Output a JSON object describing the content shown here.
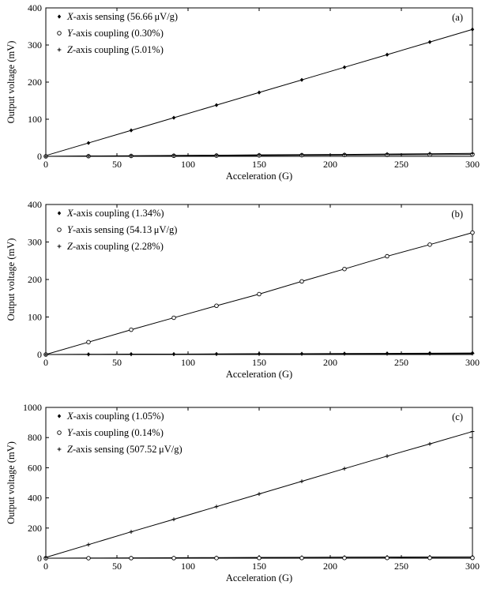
{
  "chart_data": [
    {
      "type": "line",
      "panel_label": "(a)",
      "xlabel": "Acceleration (G)",
      "ylabel": "Output voltage (mV)",
      "xlim": [
        0,
        300
      ],
      "ylim": [
        0,
        400
      ],
      "xticks": [
        0,
        50,
        100,
        150,
        200,
        250,
        300
      ],
      "yticks": [
        0,
        100,
        200,
        300,
        400
      ],
      "legend_position": "top-left",
      "x": [
        0,
        30,
        60,
        90,
        120,
        150,
        180,
        210,
        240,
        270,
        300
      ],
      "series": [
        {
          "axis": "X",
          "name_rest": "-axis sensing (56.66 μV/g)",
          "marker": "diamond",
          "values": [
            2,
            36,
            70,
            104,
            138,
            172,
            206,
            240,
            274,
            308,
            342
          ]
        },
        {
          "axis": "Y",
          "name_rest": "-axis coupling (0.30%)",
          "marker": "circle",
          "values": [
            0,
            0.5,
            1,
            1.5,
            2,
            2.5,
            3,
            3.5,
            4,
            4.5,
            5
          ]
        },
        {
          "axis": "Z",
          "name_rest": "-axis coupling (5.01%)",
          "marker": "plus",
          "values": [
            0,
            1,
            1.5,
            2.5,
            3,
            4,
            4.5,
            5,
            6,
            7,
            8
          ]
        }
      ]
    },
    {
      "type": "line",
      "panel_label": "(b)",
      "xlabel": "Acceleration (G)",
      "ylabel": "Output voltage (mV)",
      "xlim": [
        0,
        300
      ],
      "ylim": [
        0,
        400
      ],
      "xticks": [
        0,
        50,
        100,
        150,
        200,
        250,
        300
      ],
      "yticks": [
        0,
        100,
        200,
        300,
        400
      ],
      "legend_position": "top-left",
      "x": [
        0,
        30,
        60,
        90,
        120,
        150,
        180,
        210,
        240,
        270,
        300
      ],
      "series": [
        {
          "axis": "X",
          "name_rest": "-axis coupling (1.34%)",
          "marker": "diamond",
          "values": [
            0,
            0.5,
            1,
            1,
            1.5,
            2,
            2,
            2.5,
            3,
            3.5,
            4
          ]
        },
        {
          "axis": "Y",
          "name_rest": "-axis sensing (54.13 μV/g)",
          "marker": "circle",
          "values": [
            0,
            33,
            66,
            98,
            130,
            161,
            195,
            228,
            262,
            293,
            325
          ]
        },
        {
          "axis": "Z",
          "name_rest": "-axis coupling (2.28%)",
          "marker": "plus",
          "values": [
            0,
            0.3,
            0.6,
            0.9,
            1.1,
            1.4,
            1.6,
            1.8,
            2,
            2.2,
            2.4
          ]
        }
      ]
    },
    {
      "type": "line",
      "panel_label": "(c)",
      "xlabel": "Acceleration (G)",
      "ylabel": "Output voltage (mV)",
      "xlim": [
        0,
        300
      ],
      "ylim": [
        0,
        1000
      ],
      "xticks": [
        0,
        50,
        100,
        150,
        200,
        250,
        300
      ],
      "yticks": [
        0,
        200,
        400,
        600,
        800,
        1000
      ],
      "legend_position": "top-left",
      "x": [
        0,
        30,
        60,
        90,
        120,
        150,
        180,
        210,
        240,
        270,
        300
      ],
      "series": [
        {
          "axis": "X",
          "name_rest": "-axis coupling (1.05%)",
          "marker": "diamond",
          "values": [
            0,
            1,
            2,
            3,
            4,
            5,
            6,
            7,
            8,
            8.5,
            9
          ]
        },
        {
          "axis": "Y",
          "name_rest": "-axis coupling (0.14%)",
          "marker": "circle",
          "values": [
            0,
            0.2,
            0.4,
            0.6,
            0.8,
            1,
            1.2,
            1.4,
            1.6,
            1.8,
            2
          ]
        },
        {
          "axis": "Z",
          "name_rest": "-axis sensing (507.52 μV/g)",
          "marker": "plus",
          "values": [
            5,
            90,
            175,
            258,
            342,
            426,
            510,
            594,
            677,
            758,
            840
          ]
        }
      ]
    }
  ]
}
